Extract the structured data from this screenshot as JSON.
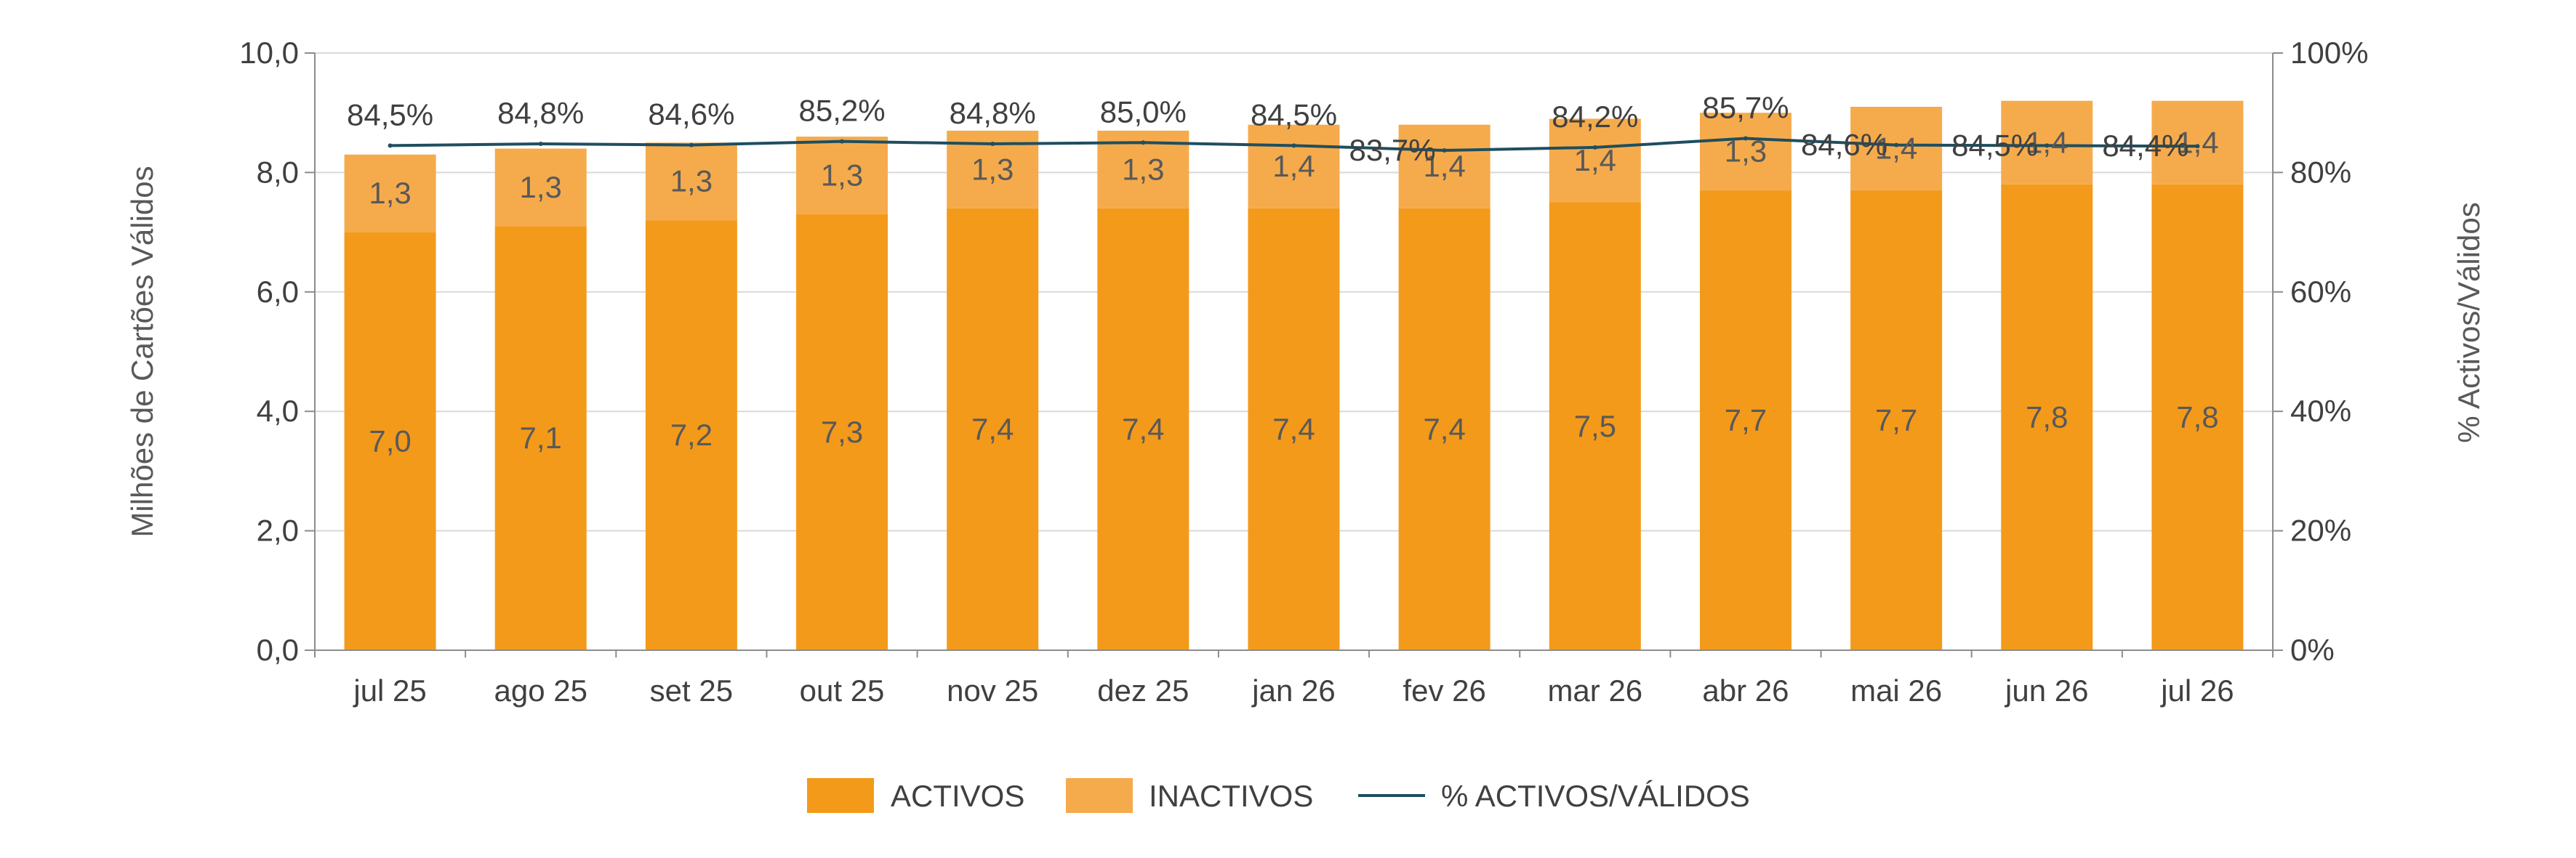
{
  "chart_data": {
    "type": "bar",
    "stacked": true,
    "categories": [
      "jul 25",
      "ago 25",
      "set 25",
      "out 25",
      "nov 25",
      "dez 25",
      "jan 26",
      "fev 26",
      "mar 26",
      "abr 26",
      "mai 26",
      "jun 26",
      "jul 26"
    ],
    "series": [
      {
        "name": "ACTIVOS",
        "values": [
          7.0,
          7.1,
          7.2,
          7.3,
          7.4,
          7.4,
          7.4,
          7.4,
          7.5,
          7.7,
          7.7,
          7.8,
          7.8
        ],
        "labels": [
          "7,0",
          "7,1",
          "7,2",
          "7,3",
          "7,4",
          "7,4",
          "7,4",
          "7,4",
          "7,5",
          "7,7",
          "7,7",
          "7,8",
          "7,8"
        ],
        "color": "#F39A1B"
      },
      {
        "name": "INACTIVOS",
        "values": [
          1.3,
          1.3,
          1.3,
          1.3,
          1.3,
          1.3,
          1.4,
          1.4,
          1.4,
          1.3,
          1.4,
          1.4,
          1.4
        ],
        "labels": [
          "1,3",
          "1,3",
          "1,3",
          "1,3",
          "1,3",
          "1,3",
          "1,4",
          "1,4",
          "1,4",
          "1,3",
          "1,4",
          "1,4",
          "1,4"
        ],
        "color": "#F5AB4C"
      }
    ],
    "line": {
      "name": "% ACTIVOS/VÁLIDOS",
      "values": [
        84.5,
        84.8,
        84.6,
        85.2,
        84.8,
        85.0,
        84.5,
        83.7,
        84.2,
        85.7,
        84.6,
        84.5,
        84.4
      ],
      "labels": [
        "84,5%",
        "84,8%",
        "84,6%",
        "85,2%",
        "84,8%",
        "85,0%",
        "84,5%",
        "83,7%",
        "84,2%",
        "85,7%",
        "84,6%",
        "84,5%",
        "84,4%"
      ],
      "color": "#1F4E5F"
    },
    "ylabel": "Milhões de Cartões Válidos",
    "ylabel_right": "% Activos/Válidos",
    "ylim": [
      0,
      10
    ],
    "ylim_right": [
      0,
      100
    ],
    "yticks": [
      "0,0",
      "2,0",
      "4,0",
      "6,0",
      "8,0",
      "10,0"
    ],
    "yticks_right": [
      "0%",
      "20%",
      "40%",
      "60%",
      "80%",
      "100%"
    ],
    "grid": true,
    "legend": "bottom"
  }
}
